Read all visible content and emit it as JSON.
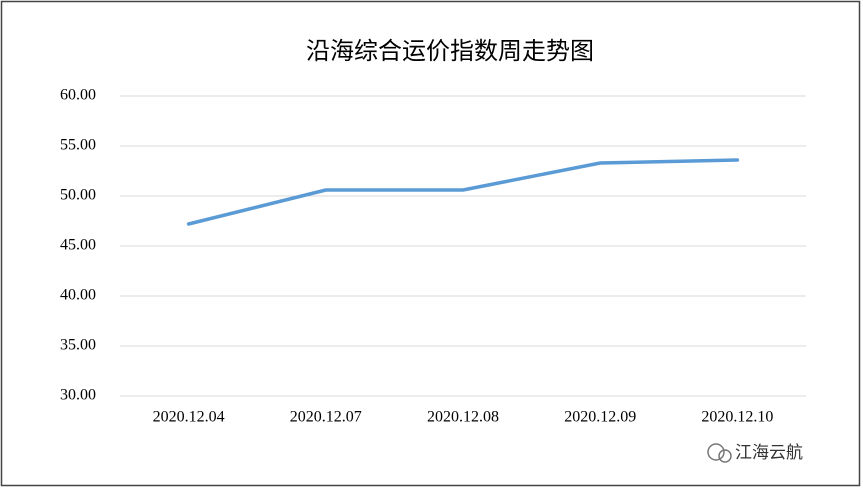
{
  "chart_data": {
    "type": "line",
    "title": "沿海综合运价指数周走势图",
    "categories": [
      "2020.12.04",
      "2020.12.07",
      "2020.12.08",
      "2020.12.09",
      "2020.12.10"
    ],
    "values": [
      47.2,
      50.6,
      50.6,
      53.3,
      53.6
    ],
    "color": "#5b9bd5",
    "ylim": [
      30,
      60
    ],
    "yticks": [
      {
        "value": 30,
        "label": "30.00"
      },
      {
        "value": 35,
        "label": "35.00"
      },
      {
        "value": 40,
        "label": "40.00"
      },
      {
        "value": 45,
        "label": "45.00"
      },
      {
        "value": 50,
        "label": "50.00"
      },
      {
        "value": 55,
        "label": "55.00"
      },
      {
        "value": 60,
        "label": "60.00"
      }
    ],
    "grid": true
  },
  "watermark": "江海云航"
}
